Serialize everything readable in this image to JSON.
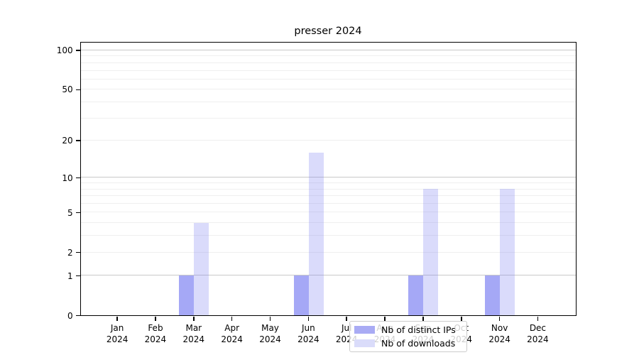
{
  "figure": {
    "title": "presser 2024"
  },
  "legend": {
    "items": [
      {
        "label": "Nb of distinct IPs",
        "swatch_color": "#a9abf4"
      },
      {
        "label": "Nb of downloads",
        "swatch_color": "#dadcfa"
      }
    ]
  },
  "colors": {
    "bar_dark": "rgba(123,127,242,0.68)",
    "bar_light": "rgba(123,127,242,0.28)",
    "grid_major": "#c9c9c9",
    "grid_minor": "#efefef",
    "axis": "#000000"
  },
  "chart_data": {
    "type": "bar",
    "title": "presser 2024",
    "months": [
      "Jan",
      "Feb",
      "Mar",
      "Apr",
      "May",
      "Jun",
      "Jul",
      "Aug",
      "Sep",
      "Oct",
      "Nov",
      "Dec"
    ],
    "year": "2024",
    "categories": [
      "Jan 2024",
      "Feb 2024",
      "Mar 2024",
      "Apr 2024",
      "May 2024",
      "Jun 2024",
      "Jul 2024",
      "Aug 2024",
      "Sep 2024",
      "Oct 2024",
      "Nov 2024",
      "Dec 2024"
    ],
    "series": [
      {
        "name": "Nb of distinct IPs",
        "values": [
          0,
          0,
          1,
          0,
          0,
          1,
          0,
          0,
          1,
          0,
          1,
          0
        ]
      },
      {
        "name": "Nb of downloads",
        "values": [
          0,
          0,
          4,
          0,
          0,
          16,
          0,
          0,
          8,
          0,
          8,
          0
        ]
      }
    ],
    "yscale": "log10(1+x)",
    "ytick_labels": [
      0,
      1,
      2,
      5,
      10,
      20,
      50,
      100
    ],
    "grid_major_at": [
      1,
      10,
      100
    ],
    "grid_minor_at": [
      2,
      3,
      4,
      5,
      6,
      7,
      8,
      9,
      20,
      30,
      40,
      50,
      60,
      70,
      80,
      90
    ],
    "ylim": [
      0,
      115
    ],
    "grid": "on",
    "legend_position": "lower center (inside axes)"
  }
}
